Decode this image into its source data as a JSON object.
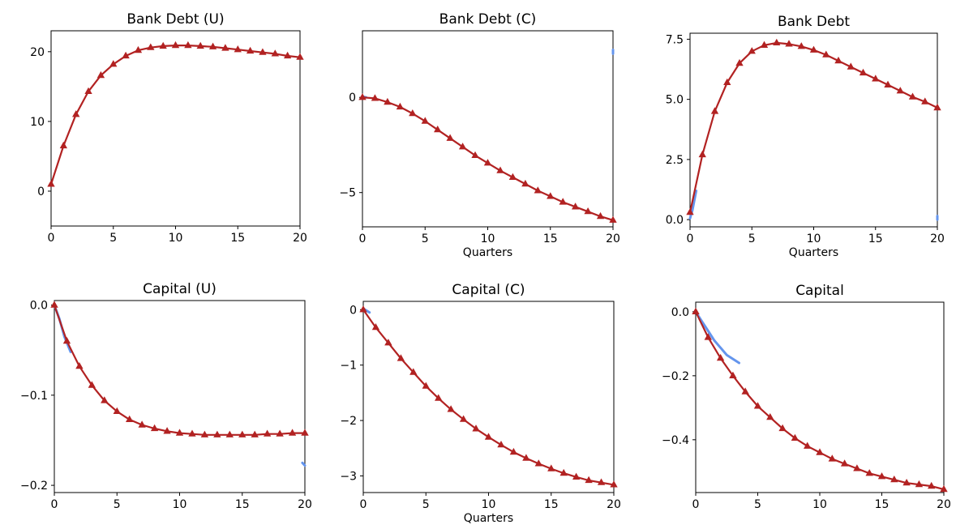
{
  "colors": {
    "main_series": "#b22222",
    "secondary_series": "#6495ed"
  },
  "chart_data": [
    {
      "type": "line",
      "title": "Bank Debt (U)",
      "xlabel": "",
      "xlim": [
        0,
        20
      ],
      "ylim": [
        -5,
        23
      ],
      "xticks": [
        0,
        5,
        10,
        15,
        20
      ],
      "yticks": [
        0,
        10,
        20
      ],
      "ytick_labels": [
        "0",
        "10",
        "20"
      ],
      "marker": "triangle",
      "series": [
        {
          "role": "main",
          "x": [
            0,
            1,
            2,
            3,
            4,
            5,
            6,
            7,
            8,
            9,
            10,
            11,
            12,
            13,
            14,
            15,
            16,
            17,
            18,
            19,
            20
          ],
          "values": [
            1,
            6.5,
            11,
            14.3,
            16.6,
            18.2,
            19.4,
            20.2,
            20.6,
            20.8,
            20.9,
            20.9,
            20.8,
            20.7,
            20.5,
            20.3,
            20.1,
            19.9,
            19.7,
            19.4,
            19.2
          ]
        }
      ]
    },
    {
      "type": "line",
      "title": "Bank Debt (C)",
      "xlabel": "Quarters",
      "xlim": [
        0,
        20
      ],
      "ylim": [
        -6.8,
        3.5
      ],
      "xticks": [
        0,
        5,
        10,
        15,
        20
      ],
      "yticks": [
        0,
        -5
      ],
      "ytick_labels": [
        "0",
        "−5"
      ],
      "marker": "triangle",
      "series": [
        {
          "role": "main",
          "x": [
            0,
            1,
            2,
            3,
            4,
            5,
            6,
            7,
            8,
            9,
            10,
            11,
            12,
            13,
            14,
            15,
            16,
            17,
            18,
            19,
            20
          ],
          "values": [
            0,
            -0.05,
            -0.25,
            -0.5,
            -0.85,
            -1.25,
            -1.7,
            -2.15,
            -2.6,
            -3.05,
            -3.45,
            -3.85,
            -4.2,
            -4.55,
            -4.9,
            -5.2,
            -5.5,
            -5.75,
            -6.0,
            -6.25,
            -6.45
          ]
        },
        {
          "role": "secondary",
          "x": [
            0,
            0.3
          ],
          "values": [
            0.05,
            0
          ]
        },
        {
          "role": "secondary",
          "x": [
            20,
            20
          ],
          "values": [
            2.5,
            2.3
          ]
        }
      ]
    },
    {
      "type": "line",
      "title": "Bank Debt",
      "xlabel": "Quarters",
      "xlim": [
        0,
        20
      ],
      "ylim": [
        -0.3,
        7.75
      ],
      "xticks": [
        0,
        5,
        10,
        15,
        20
      ],
      "yticks": [
        0.0,
        2.5,
        5.0,
        7.5
      ],
      "ytick_labels": [
        "0.0",
        "2.5",
        "5.0",
        "7.5"
      ],
      "marker": "triangle",
      "series": [
        {
          "role": "main",
          "x": [
            0,
            1,
            2,
            3,
            4,
            5,
            6,
            7,
            8,
            9,
            10,
            11,
            12,
            13,
            14,
            15,
            16,
            17,
            18,
            19,
            20
          ],
          "values": [
            0.3,
            2.7,
            4.5,
            5.7,
            6.5,
            7.0,
            7.25,
            7.35,
            7.3,
            7.2,
            7.05,
            6.85,
            6.6,
            6.35,
            6.1,
            5.85,
            5.6,
            5.35,
            5.1,
            4.9,
            4.65
          ]
        },
        {
          "role": "secondary",
          "x": [
            0,
            0.2,
            0.5
          ],
          "values": [
            0.05,
            0.4,
            1.2
          ]
        },
        {
          "role": "secondary",
          "x": [
            20,
            20
          ],
          "values": [
            0.15,
            0.0
          ]
        }
      ]
    },
    {
      "type": "line",
      "title": "Capital (U)",
      "xlabel": "",
      "xlim": [
        0,
        20
      ],
      "ylim": [
        -0.208,
        0.005
      ],
      "xticks": [
        0,
        5,
        10,
        15,
        20
      ],
      "yticks": [
        0.0,
        -0.1,
        -0.2
      ],
      "ytick_labels": [
        "0.0",
        "−0.1",
        "−0.2"
      ],
      "marker": "triangle",
      "series": [
        {
          "role": "main",
          "x": [
            0,
            1,
            2,
            3,
            4,
            5,
            6,
            7,
            8,
            9,
            10,
            11,
            12,
            13,
            14,
            15,
            16,
            17,
            18,
            19,
            20
          ],
          "values": [
            0,
            -0.04,
            -0.068,
            -0.089,
            -0.106,
            -0.118,
            -0.127,
            -0.133,
            -0.137,
            -0.14,
            -0.142,
            -0.143,
            -0.144,
            -0.144,
            -0.144,
            -0.144,
            -0.144,
            -0.143,
            -0.143,
            -0.142,
            -0.142
          ]
        },
        {
          "role": "secondary",
          "x": [
            0,
            0.4,
            0.8,
            1.3
          ],
          "values": [
            0,
            -0.015,
            -0.035,
            -0.052
          ]
        },
        {
          "role": "secondary",
          "x": [
            19.8,
            20
          ],
          "values": [
            -0.175,
            -0.178
          ]
        }
      ]
    },
    {
      "type": "line",
      "title": "Capital (C)",
      "xlabel": "Quarters",
      "xlim": [
        0,
        20
      ],
      "ylim": [
        -3.3,
        0.15
      ],
      "xticks": [
        0,
        5,
        10,
        15,
        20
      ],
      "yticks": [
        0,
        -1,
        -2,
        -3
      ],
      "ytick_labels": [
        "0",
        "−1",
        "−2",
        "−3"
      ],
      "marker": "triangle",
      "series": [
        {
          "role": "main",
          "x": [
            0,
            1,
            2,
            3,
            4,
            5,
            6,
            7,
            8,
            9,
            10,
            11,
            12,
            13,
            14,
            15,
            16,
            17,
            18,
            19,
            20
          ],
          "values": [
            0,
            -0.32,
            -0.6,
            -0.88,
            -1.13,
            -1.38,
            -1.6,
            -1.8,
            -1.98,
            -2.15,
            -2.3,
            -2.44,
            -2.57,
            -2.68,
            -2.78,
            -2.87,
            -2.95,
            -3.02,
            -3.08,
            -3.12,
            -3.16
          ]
        },
        {
          "role": "secondary",
          "x": [
            0,
            0.5
          ],
          "values": [
            0.02,
            -0.05
          ]
        }
      ]
    },
    {
      "type": "line",
      "title": "Capital",
      "xlabel": "",
      "xlim": [
        0,
        20
      ],
      "ylim": [
        -0.565,
        0.03
      ],
      "xticks": [
        0,
        5,
        10,
        15,
        20
      ],
      "yticks": [
        0.0,
        -0.2,
        -0.4
      ],
      "ytick_labels": [
        "0.0",
        "−0.2",
        "−0.4"
      ],
      "marker": "triangle",
      "series": [
        {
          "role": "main",
          "x": [
            0,
            1,
            2,
            3,
            4,
            5,
            6,
            7,
            8,
            9,
            10,
            11,
            12,
            13,
            14,
            15,
            16,
            17,
            18,
            19,
            20
          ],
          "values": [
            0,
            -0.08,
            -0.145,
            -0.2,
            -0.25,
            -0.295,
            -0.33,
            -0.365,
            -0.395,
            -0.42,
            -0.44,
            -0.46,
            -0.475,
            -0.49,
            -0.505,
            -0.515,
            -0.525,
            -0.535,
            -0.54,
            -0.545,
            -0.555
          ]
        },
        {
          "role": "secondary",
          "x": [
            0,
            0.5,
            1.0,
            1.5,
            2.5,
            3.5
          ],
          "values": [
            0,
            -0.03,
            -0.06,
            -0.09,
            -0.135,
            -0.16
          ]
        }
      ]
    }
  ]
}
